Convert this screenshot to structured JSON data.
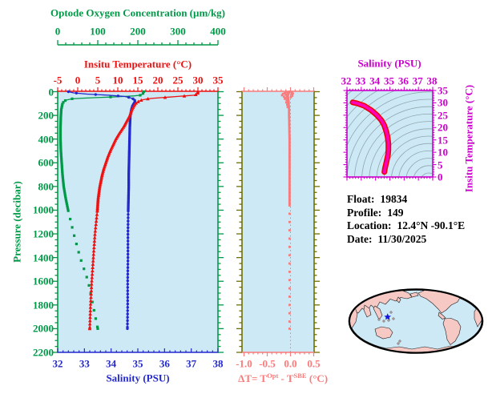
{
  "colors": {
    "oxygen_green": "#009947",
    "temp_red": "#EE1111",
    "sal_blue": "#2228CC",
    "magenta": "#CC00CC",
    "salmon": "#F97B7B",
    "olive": "#6F6F00",
    "plot_bg": "#CEE9F6",
    "land_pink": "#F7C9C4",
    "contour_gray": "#8FA6AE",
    "marker_blue": "#1515E0",
    "zero_line_gray": "#9AA0A6",
    "info_black": "#000000",
    "ts_curve": "#FF00BB",
    "ts_curve_edge": "#EE0000"
  },
  "axes": {
    "oxygen": {
      "title": "Optode Oxygen Concentration (µm/kg)",
      "tick_labels": [
        "0",
        "100",
        "200",
        "300",
        "400"
      ],
      "tick_values": [
        0,
        100,
        200,
        300,
        400
      ],
      "range": [
        0,
        400
      ]
    },
    "temperature": {
      "title": "Insitu Temperature (°C)",
      "tick_labels": [
        "-5",
        "0",
        "5",
        "10",
        "15",
        "20",
        "25",
        "30",
        "35"
      ],
      "tick_values": [
        -5,
        0,
        5,
        10,
        15,
        20,
        25,
        30,
        35
      ],
      "range": [
        -5,
        35
      ]
    },
    "pressure": {
      "title": "Pressure (decibar)",
      "tick_labels": [
        "0",
        "200",
        "400",
        "600",
        "800",
        "1000",
        "1200",
        "1400",
        "1600",
        "1800",
        "2000",
        "2200"
      ],
      "tick_values": [
        0,
        200,
        400,
        600,
        800,
        1000,
        1200,
        1400,
        1600,
        1800,
        2000,
        2200
      ],
      "range": [
        0,
        2200
      ]
    },
    "salinity": {
      "title": "Salinity (PSU)",
      "tick_labels": [
        "32",
        "33",
        "34",
        "35",
        "36",
        "37",
        "38"
      ],
      "tick_values": [
        32,
        33,
        34,
        35,
        36,
        37,
        38
      ],
      "range": [
        32,
        38
      ]
    },
    "delta": {
      "title_parts": {
        "p1": "ΔT= T",
        "sup1": "Opt",
        "p2": " - T",
        "sup2": "SBE",
        "p3": " (°C)"
      },
      "tick_labels": [
        "-1.0",
        "-0.5",
        "0.0",
        "0.5"
      ],
      "tick_values": [
        -1,
        -0.5,
        0,
        0.5
      ],
      "range": [
        -1.05,
        0.51
      ]
    },
    "ts_salinity": {
      "title": "Salinity (PSU)",
      "tick_labels": [
        "32",
        "33",
        "34",
        "35",
        "36",
        "37",
        "38"
      ],
      "tick_values": [
        32,
        33,
        34,
        35,
        36,
        37,
        38
      ],
      "range": [
        32,
        38
      ]
    },
    "ts_temperature": {
      "title": "Insitu Temperature (°C)",
      "tick_labels": [
        "0",
        "5",
        "10",
        "15",
        "20",
        "25",
        "30",
        "35"
      ],
      "tick_values": [
        0,
        5,
        10,
        15,
        20,
        25,
        30,
        35
      ],
      "range": [
        0,
        35
      ]
    }
  },
  "info": {
    "rows": [
      {
        "label": "Float:",
        "value": "19834"
      },
      {
        "label": "Profile:",
        "value": "149"
      },
      {
        "label": "Location:",
        "value": "12.4°N  -90.1°E"
      },
      {
        "label": "Date:",
        "value": "11/30/2025"
      }
    ]
  },
  "chart_data": [
    {
      "type": "line",
      "name": "pressure-profiles",
      "ylabel": "Pressure (decibar)",
      "ylim": [
        0,
        2200
      ],
      "y_inverted": true,
      "grid": false,
      "series": [
        {
          "name": "Optode Oxygen Concentration (µm/kg)",
          "color": "#009947",
          "marker": "square",
          "xlim": [
            0,
            400
          ],
          "points": [
            [
              0,
              215
            ],
            [
              10,
              214
            ],
            [
              20,
              212
            ],
            [
              30,
              206
            ],
            [
              35,
              192
            ],
            [
              40,
              168
            ],
            [
              45,
              132
            ],
            [
              50,
              96
            ],
            [
              55,
              62
            ],
            [
              60,
              36
            ],
            [
              70,
              22
            ],
            [
              80,
              16
            ],
            [
              100,
              12
            ],
            [
              150,
              9
            ],
            [
              200,
              8
            ],
            [
              300,
              7
            ],
            [
              400,
              7
            ],
            [
              500,
              8
            ],
            [
              600,
              10
            ],
            [
              700,
              12
            ],
            [
              800,
              15
            ],
            [
              900,
              20
            ],
            [
              1000,
              26
            ],
            [
              1100,
              33
            ],
            [
              1200,
              40
            ],
            [
              1300,
              48
            ],
            [
              1400,
              56
            ],
            [
              1500,
              66
            ],
            [
              1600,
              76
            ],
            [
              1700,
              82
            ],
            [
              1800,
              88
            ],
            [
              1900,
              94
            ],
            [
              2000,
              100
            ]
          ]
        },
        {
          "name": "Salinity (PSU)",
          "color": "#2228CC",
          "marker": "circle",
          "xlim": [
            32,
            38
          ],
          "points": [
            [
              0,
              32.4
            ],
            [
              10,
              32.6
            ],
            [
              20,
              33.1
            ],
            [
              30,
              33.9
            ],
            [
              40,
              34.5
            ],
            [
              50,
              34.7
            ],
            [
              60,
              34.82
            ],
            [
              70,
              34.88
            ],
            [
              80,
              34.9
            ],
            [
              100,
              34.85
            ],
            [
              120,
              34.8
            ],
            [
              150,
              34.76
            ],
            [
              200,
              34.72
            ],
            [
              250,
              34.71
            ],
            [
              300,
              34.7
            ],
            [
              400,
              34.69
            ],
            [
              500,
              34.68
            ],
            [
              600,
              34.67
            ],
            [
              700,
              34.66
            ],
            [
              800,
              34.66
            ],
            [
              900,
              34.65
            ],
            [
              1000,
              34.64
            ],
            [
              1200,
              34.63
            ],
            [
              1400,
              34.63
            ],
            [
              1600,
              34.62
            ],
            [
              1800,
              34.62
            ],
            [
              2000,
              34.61
            ]
          ]
        },
        {
          "name": "Insitu Temperature (°C)",
          "color": "#EE1111",
          "marker": "triangle",
          "xlim": [
            -5,
            35
          ],
          "points": [
            [
              0,
              30
            ],
            [
              10,
              30
            ],
            [
              20,
              29.8
            ],
            [
              30,
              29
            ],
            [
              35,
              27
            ],
            [
              40,
              25
            ],
            [
              45,
              23
            ],
            [
              50,
              21
            ],
            [
              55,
              19
            ],
            [
              60,
              17.5
            ],
            [
              70,
              16
            ],
            [
              80,
              15.3
            ],
            [
              90,
              14.8
            ],
            [
              100,
              14.4
            ],
            [
              120,
              14
            ],
            [
              140,
              13.7
            ],
            [
              160,
              13.4
            ],
            [
              180,
              13.2
            ],
            [
              200,
              13
            ],
            [
              250,
              12.2
            ],
            [
              300,
              11.4
            ],
            [
              350,
              10.4
            ],
            [
              400,
              9.5
            ],
            [
              450,
              8.8
            ],
            [
              500,
              8.1
            ],
            [
              550,
              7.5
            ],
            [
              600,
              7
            ],
            [
              650,
              6.5
            ],
            [
              700,
              6.1
            ],
            [
              750,
              5.8
            ],
            [
              800,
              5.5
            ],
            [
              850,
              5.3
            ],
            [
              900,
              5.1
            ],
            [
              950,
              5
            ],
            [
              1000,
              4.9
            ],
            [
              1100,
              4.6
            ],
            [
              1200,
              4.3
            ],
            [
              1300,
              4.1
            ],
            [
              1400,
              3.9
            ],
            [
              1500,
              3.7
            ],
            [
              1600,
              3.5
            ],
            [
              1700,
              3.35
            ],
            [
              1800,
              3.2
            ],
            [
              1900,
              3.1
            ],
            [
              2000,
              3
            ]
          ]
        }
      ]
    },
    {
      "type": "line",
      "name": "delta-t-profile",
      "xlabel": "ΔT= TOpt - TSBE (°C)",
      "xlim": [
        -1.05,
        0.51
      ],
      "ylim": [
        0,
        2200
      ],
      "y_inverted": true,
      "color": "#F97B7B",
      "points": [
        [
          0,
          -0.02
        ],
        [
          20,
          -0.05
        ],
        [
          40,
          -0.06
        ],
        [
          60,
          -0.05
        ],
        [
          80,
          -0.04
        ],
        [
          100,
          -0.04
        ],
        [
          150,
          -0.03
        ],
        [
          200,
          -0.03
        ],
        [
          300,
          -0.025
        ],
        [
          400,
          -0.02
        ],
        [
          500,
          -0.02
        ],
        [
          600,
          -0.02
        ],
        [
          700,
          -0.02
        ],
        [
          800,
          -0.02
        ],
        [
          900,
          -0.02
        ],
        [
          1000,
          -0.02
        ],
        [
          1100,
          -0.02
        ],
        [
          1200,
          -0.02
        ],
        [
          1300,
          -0.02
        ],
        [
          1400,
          -0.02
        ],
        [
          1500,
          -0.02
        ],
        [
          1600,
          -0.02
        ],
        [
          1700,
          -0.02
        ],
        [
          1800,
          -0.02
        ],
        [
          1900,
          -0.02
        ],
        [
          2000,
          -0.02
        ]
      ],
      "scatter": [
        [
          5,
          -0.08
        ],
        [
          8,
          0.03
        ],
        [
          12,
          -0.12
        ],
        [
          15,
          0.05
        ],
        [
          18,
          -0.16
        ],
        [
          22,
          0.02
        ],
        [
          26,
          -0.1
        ],
        [
          30,
          -0.18
        ],
        [
          34,
          0.04
        ],
        [
          38,
          -0.07
        ],
        [
          42,
          -0.14
        ],
        [
          46,
          0.01
        ],
        [
          50,
          -0.09
        ],
        [
          55,
          -0.05
        ],
        [
          60,
          -0.12
        ],
        [
          70,
          -0.08
        ],
        [
          80,
          -0.06
        ],
        [
          90,
          -0.09
        ],
        [
          100,
          -0.05
        ],
        [
          110,
          -0.07
        ],
        [
          120,
          -0.04
        ],
        [
          130,
          -0.06
        ]
      ]
    },
    {
      "type": "line",
      "name": "ts-diagram",
      "xlabel": "Salinity (PSU)",
      "ylabel": "Insitu Temperature (°C)",
      "xlim": [
        32,
        38
      ],
      "ylim": [
        0,
        35
      ],
      "color": "#FF00BB",
      "edge_color": "#EE0000",
      "points": [
        [
          32.4,
          30.2
        ],
        [
          32.7,
          29.8
        ],
        [
          33.2,
          28.8
        ],
        [
          33.7,
          27
        ],
        [
          34.1,
          25
        ],
        [
          34.4,
          23
        ],
        [
          34.6,
          21
        ],
        [
          34.75,
          18.5
        ],
        [
          34.85,
          16
        ],
        [
          34.9,
          13.5
        ],
        [
          34.9,
          11
        ],
        [
          34.87,
          9
        ],
        [
          34.8,
          7
        ],
        [
          34.72,
          5
        ],
        [
          34.66,
          3.5
        ],
        [
          34.62,
          2
        ]
      ]
    },
    {
      "type": "map",
      "name": "location-map",
      "marker": {
        "lat": 12.4,
        "lon": -90.1,
        "color": "#1515E0"
      }
    }
  ]
}
